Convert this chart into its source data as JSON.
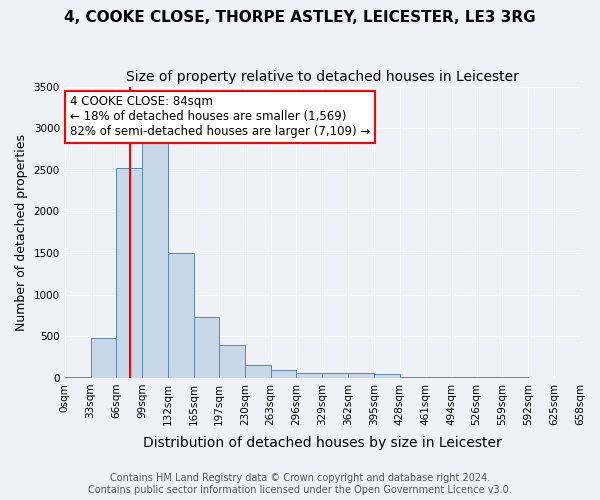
{
  "title": "4, COOKE CLOSE, THORPE ASTLEY, LEICESTER, LE3 3RG",
  "subtitle": "Size of property relative to detached houses in Leicester",
  "xlabel": "Distribution of detached houses by size in Leicester",
  "ylabel": "Number of detached properties",
  "bin_labels": [
    "0sqm",
    "33sqm",
    "66sqm",
    "99sqm",
    "132sqm",
    "165sqm",
    "197sqm",
    "230sqm",
    "263sqm",
    "296sqm",
    "329sqm",
    "362sqm",
    "395sqm",
    "428sqm",
    "461sqm",
    "494sqm",
    "526sqm",
    "559sqm",
    "592sqm",
    "625sqm",
    "658sqm"
  ],
  "bin_edges": [
    0,
    33,
    66,
    99,
    132,
    165,
    197,
    230,
    263,
    296,
    329,
    362,
    395,
    428,
    461,
    494,
    526,
    559,
    592,
    625,
    658
  ],
  "bar_values": [
    5,
    480,
    2520,
    2830,
    1500,
    730,
    390,
    160,
    100,
    55,
    60,
    55,
    45,
    5,
    5,
    5,
    5,
    5,
    0,
    0
  ],
  "bar_color": "#c8d8e8",
  "bar_edge_color": "#5a87b0",
  "property_line_x": 84,
  "property_line_label": "4 COOKE CLOSE: 84sqm",
  "annotation_line1": "← 18% of detached houses are smaller (1,569)",
  "annotation_line2": "82% of semi-detached houses are larger (7,109) →",
  "annotation_box_color": "white",
  "annotation_box_edge": "red",
  "vline_color": "red",
  "ylim": [
    0,
    3500
  ],
  "yticks": [
    0,
    500,
    1000,
    1500,
    2000,
    2500,
    3000,
    3500
  ],
  "footer1": "Contains HM Land Registry data © Crown copyright and database right 2024.",
  "footer2": "Contains public sector information licensed under the Open Government Licence v3.0.",
  "background_color": "#eef2f6",
  "plot_background": "#eef2f6",
  "grid_color": "white",
  "title_fontsize": 11,
  "subtitle_fontsize": 10,
  "xlabel_fontsize": 10,
  "ylabel_fontsize": 9,
  "tick_fontsize": 7.5,
  "footer_fontsize": 7
}
